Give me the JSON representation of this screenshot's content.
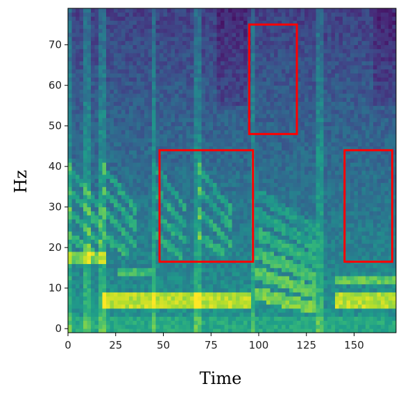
{
  "chart_data": {
    "type": "heatmap",
    "title": "",
    "xlabel": "Time",
    "ylabel": "Hz",
    "xlim": [
      0,
      172
    ],
    "ylim": [
      -1,
      79
    ],
    "x_ticks": [
      0,
      25,
      50,
      75,
      100,
      125,
      150
    ],
    "y_ticks": [
      0,
      10,
      20,
      30,
      40,
      50,
      60,
      70
    ],
    "colormap": "viridis",
    "grid": false,
    "onsets": [
      0,
      10,
      18,
      45,
      68,
      97,
      132
    ],
    "highlight_boxes": [
      {
        "x0": 48,
        "x1": 97,
        "y0": 16.5,
        "y1": 44
      },
      {
        "x0": 95,
        "x1": 120,
        "y0": 48,
        "y1": 75
      },
      {
        "x0": 145,
        "x1": 170,
        "y0": 16.5,
        "y1": 44
      }
    ],
    "highlight_color": "#ff0000"
  }
}
